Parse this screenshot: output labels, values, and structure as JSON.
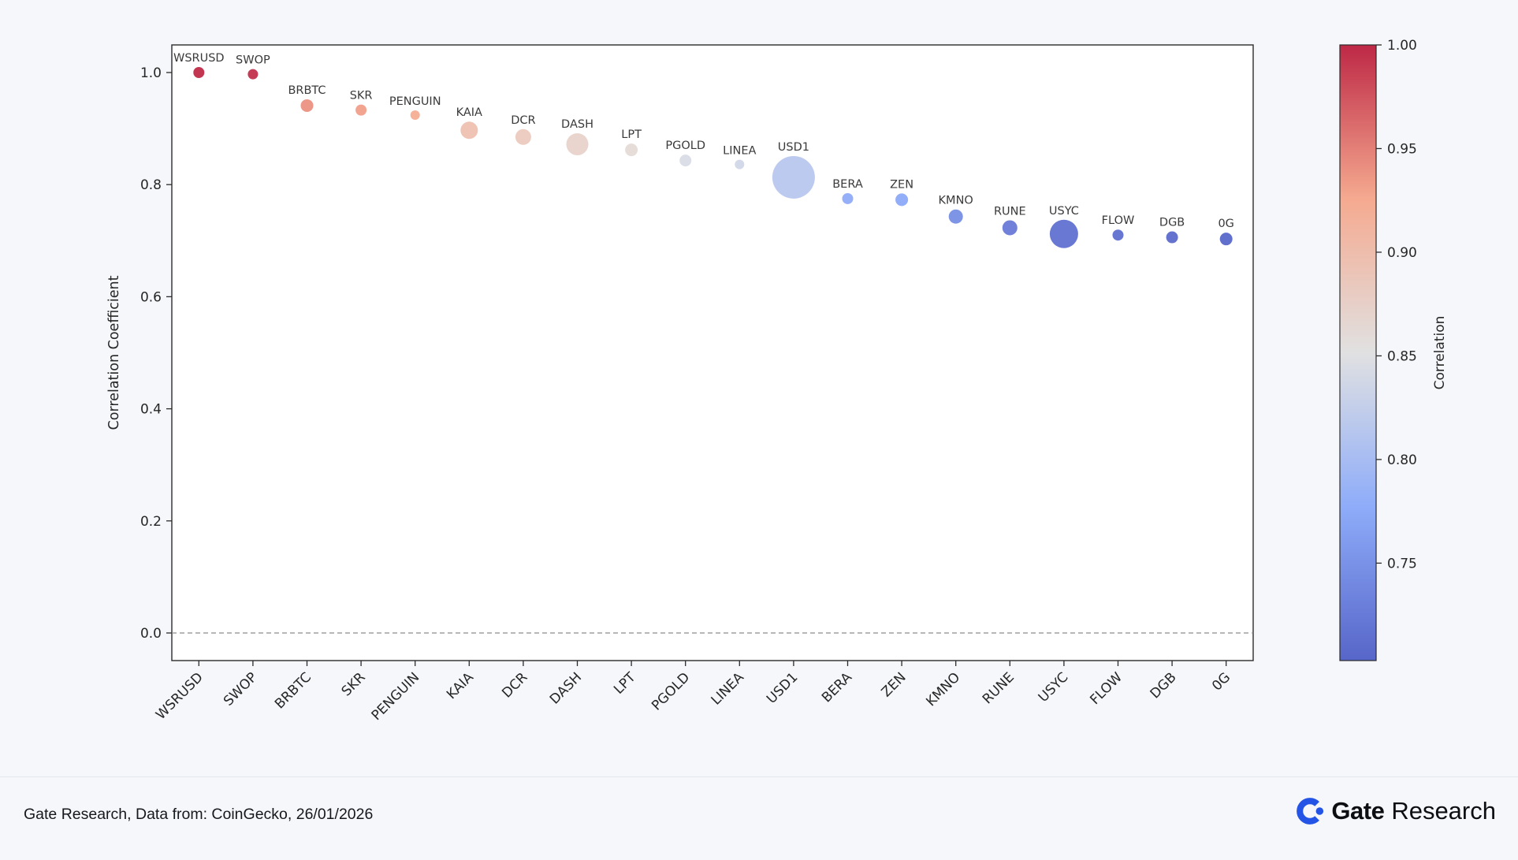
{
  "chart_data": {
    "type": "scatter",
    "title": "",
    "xlabel": "",
    "ylabel": "Correlation Coefficient",
    "colorbar_label": "Correlation",
    "categories": [
      "WSRUSD",
      "SWOP",
      "BRBTC",
      "SKR",
      "PENGUIN",
      "KAIA",
      "DCR",
      "DASH",
      "LPT",
      "PGOLD",
      "LINEA",
      "USD1",
      "BERA",
      "ZEN",
      "KMNO",
      "RUNE",
      "USYC",
      "FLOW",
      "DGB",
      "0G"
    ],
    "series": [
      {
        "name": "Correlation Coefficient",
        "values": [
          1.0,
          0.997,
          0.941,
          0.933,
          0.924,
          0.897,
          0.885,
          0.872,
          0.862,
          0.843,
          0.836,
          0.813,
          0.775,
          0.773,
          0.743,
          0.723,
          0.712,
          0.71,
          0.706,
          0.703
        ],
        "bubble_radius_px": [
          7,
          6.5,
          8,
          7,
          6,
          11,
          10,
          14,
          8,
          7.5,
          6,
          27,
          7,
          8,
          9,
          9.5,
          18,
          7,
          7.5,
          8
        ]
      }
    ],
    "ylim": [
      -0.05,
      1.05
    ],
    "yticks": [
      0.0,
      0.2,
      0.4,
      0.6,
      0.8,
      1.0
    ],
    "ytick_labels": [
      "0.0",
      "0.2",
      "0.4",
      "0.6",
      "0.8",
      "1.0"
    ],
    "zero_line": {
      "y": 0.0,
      "style": "dashed"
    },
    "grid": false,
    "legend": "colorbar-right",
    "colormap": "coolwarm",
    "colormap_stops": [
      {
        "t": 0.0,
        "color": "#3b4cc0"
      },
      {
        "t": 0.25,
        "color": "#7c9ff9"
      },
      {
        "t": 0.5,
        "color": "#dddddd"
      },
      {
        "t": 0.75,
        "color": "#f59c7d"
      },
      {
        "t": 1.0,
        "color": "#b40426"
      }
    ],
    "color_domain": [
      0.703,
      1.0
    ],
    "colorbar_ticks": [
      "1.00",
      "0.95",
      "0.90",
      "0.85",
      "0.80",
      "0.75"
    ],
    "colorbar_tick_values": [
      1.0,
      0.95,
      0.9,
      0.85,
      0.8,
      0.75
    ]
  },
  "colors": {
    "page_bg": "#f5f7fa",
    "plot_bg": "#ffffff",
    "frame": "#2b2b2b",
    "tick_text": "#262626",
    "bubble_label": "#3a3a3a",
    "zero_line": "#8c8c8c",
    "divider": "#e4e7ec",
    "footer_text": "#16181d",
    "logo_blue": "#2354e6",
    "logo_text": "#0c0e12"
  },
  "footer": {
    "source": "Gate Research, Data from: CoinGecko, 26/01/2026",
    "logo_bold": "Gate",
    "logo_regular": "Research"
  }
}
